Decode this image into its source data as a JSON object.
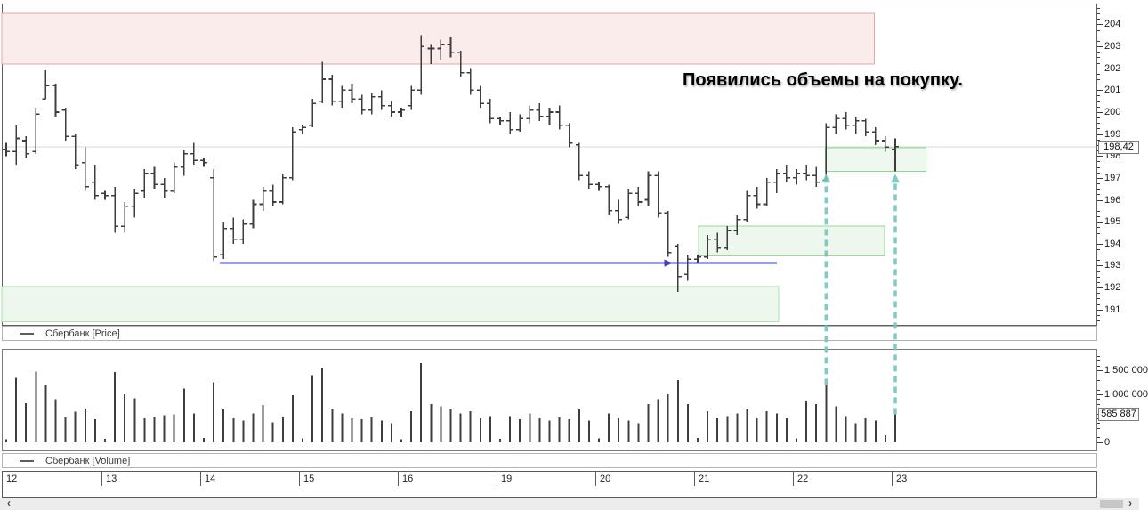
{
  "annotation": {
    "text": "Появились объемы на покупку."
  },
  "price_panel": {
    "legend_label": "Сбербанк [Price]",
    "legend_marker": "—",
    "current_price_label": "198,42"
  },
  "volume_panel": {
    "legend_label": "Сбербанк [Volume]",
    "legend_marker": "—",
    "current_volume_label": "585 887"
  },
  "scrollbar": {
    "left_arrow": "‹",
    "right_arrow": "›"
  },
  "colors": {
    "bar": "#3d3d3d",
    "grid_line": "#d8d8d8",
    "resistance_fill": "#fbecec",
    "resistance_border": "#e5a5a5",
    "support_fill": "#edf7ed",
    "support_border": "#95d995",
    "blue_line": "#4040c0",
    "arrow_teal": "#74c7bc"
  },
  "chart_data": {
    "type": "ohlc+volume",
    "title": "Сбербанк",
    "days": [
      {
        "label": "12"
      },
      {
        "label": "13"
      },
      {
        "label": "14"
      },
      {
        "label": "15"
      },
      {
        "label": "16"
      },
      {
        "label": "19"
      },
      {
        "label": "20"
      },
      {
        "label": "21"
      },
      {
        "label": "22"
      },
      {
        "label": "23"
      }
    ],
    "bars_per_day": 10,
    "price_view": [
      190.3,
      204.95
    ],
    "volume_view": [
      -170000,
      1950000
    ],
    "price_tick_labels": [
      191,
      192,
      193,
      194,
      195,
      196,
      197,
      198,
      199,
      200,
      201,
      202,
      203,
      204
    ],
    "price_minor_step": 0.25,
    "volume_tick_labels": [
      {
        "value": 0,
        "label": "0"
      },
      {
        "value": 1000000,
        "label": "1 000 000"
      },
      {
        "value": 1500000,
        "label": "1 500 000"
      }
    ],
    "volume_minor_step": 100000,
    "current_price": 198.42,
    "current_volume": 585887,
    "bars": [
      [
        198.3,
        198.6,
        198.0,
        198.2,
        60000
      ],
      [
        198.2,
        199.4,
        197.6,
        198.8,
        1350000
      ],
      [
        198.7,
        198.9,
        197.9,
        198.1,
        820000
      ],
      [
        198.2,
        200.2,
        198.1,
        199.9,
        1480000
      ],
      [
        200.6,
        201.9,
        200.6,
        201.2,
        1210000
      ],
      [
        201.2,
        201.3,
        199.8,
        200.0,
        900000
      ],
      [
        200.1,
        200.2,
        198.7,
        198.9,
        520000
      ],
      [
        198.9,
        199.0,
        197.4,
        197.6,
        640000
      ],
      [
        197.7,
        198.4,
        196.4,
        196.6,
        700000
      ],
      [
        196.8,
        197.6,
        196.0,
        196.2,
        480000
      ],
      [
        196.3,
        196.4,
        196.0,
        196.2,
        70000
      ],
      [
        196.2,
        196.6,
        194.5,
        194.8,
        1470000
      ],
      [
        194.8,
        195.9,
        194.5,
        195.7,
        1000000
      ],
      [
        195.7,
        196.5,
        195.2,
        196.3,
        920000
      ],
      [
        196.4,
        197.4,
        196.1,
        197.2,
        500000
      ],
      [
        197.2,
        197.5,
        196.5,
        196.7,
        530000
      ],
      [
        196.7,
        197.0,
        196.1,
        196.4,
        560000
      ],
      [
        196.4,
        197.7,
        196.3,
        197.5,
        580000
      ],
      [
        197.5,
        198.3,
        197.1,
        198.1,
        1120000
      ],
      [
        198.1,
        198.6,
        197.6,
        197.8,
        600000
      ],
      [
        197.8,
        197.9,
        197.5,
        197.7,
        90000
      ],
      [
        197.0,
        197.4,
        193.2,
        193.4,
        1250000
      ],
      [
        193.5,
        195.0,
        193.3,
        194.7,
        700000
      ],
      [
        194.7,
        195.2,
        194.0,
        194.2,
        500000
      ],
      [
        194.2,
        195.1,
        194.0,
        194.9,
        450000
      ],
      [
        194.9,
        196.0,
        194.7,
        195.8,
        600000
      ],
      [
        195.8,
        196.6,
        195.5,
        196.4,
        780000
      ],
      [
        196.4,
        196.7,
        195.7,
        195.9,
        420000
      ],
      [
        195.9,
        197.2,
        195.8,
        197.0,
        520000
      ],
      [
        197.0,
        199.3,
        196.9,
        199.1,
        980000
      ],
      [
        199.2,
        199.4,
        199.0,
        199.3,
        80000
      ],
      [
        199.4,
        200.6,
        199.3,
        200.4,
        1400000
      ],
      [
        200.5,
        202.3,
        200.4,
        201.5,
        1550000
      ],
      [
        201.5,
        201.7,
        200.3,
        200.5,
        700000
      ],
      [
        200.5,
        201.2,
        200.2,
        201.0,
        600000
      ],
      [
        201.0,
        201.3,
        200.4,
        200.6,
        500000
      ],
      [
        200.6,
        200.8,
        199.9,
        200.1,
        480000
      ],
      [
        200.1,
        200.9,
        199.9,
        200.7,
        520000
      ],
      [
        200.7,
        201.0,
        200.1,
        200.3,
        450000
      ],
      [
        200.3,
        200.5,
        199.8,
        200.0,
        400000
      ],
      [
        200.0,
        200.2,
        199.8,
        200.1,
        60000
      ],
      [
        200.3,
        201.2,
        200.1,
        201.0,
        650000
      ],
      [
        201.0,
        203.5,
        200.8,
        203.0,
        1650000
      ],
      [
        202.9,
        203.1,
        202.2,
        202.9,
        800000
      ],
      [
        202.9,
        203.3,
        202.4,
        203.1,
        750000
      ],
      [
        203.1,
        203.4,
        202.5,
        202.7,
        700000
      ],
      [
        202.7,
        202.8,
        201.6,
        201.8,
        600000
      ],
      [
        201.8,
        202.0,
        200.8,
        201.0,
        650000
      ],
      [
        201.0,
        201.2,
        200.2,
        200.4,
        500000
      ],
      [
        200.4,
        200.6,
        199.5,
        199.7,
        550000
      ],
      [
        199.7,
        199.8,
        199.4,
        199.6,
        70000
      ],
      [
        199.6,
        200.0,
        199.0,
        199.2,
        550000
      ],
      [
        199.2,
        199.9,
        199.1,
        199.7,
        480000
      ],
      [
        199.7,
        200.3,
        199.5,
        200.1,
        600000
      ],
      [
        200.1,
        200.4,
        199.6,
        199.8,
        500000
      ],
      [
        199.8,
        200.2,
        199.4,
        200.0,
        450000
      ],
      [
        200.0,
        200.3,
        199.2,
        199.4,
        520000
      ],
      [
        199.4,
        199.5,
        198.4,
        198.6,
        480000
      ],
      [
        198.5,
        198.6,
        196.9,
        197.1,
        700000
      ],
      [
        197.1,
        197.3,
        196.5,
        196.7,
        450000
      ],
      [
        196.7,
        196.8,
        196.4,
        196.6,
        80000
      ],
      [
        196.6,
        196.7,
        195.3,
        195.5,
        600000
      ],
      [
        195.5,
        196.0,
        194.9,
        195.1,
        500000
      ],
      [
        195.2,
        196.5,
        195.1,
        196.3,
        450000
      ],
      [
        196.3,
        196.6,
        195.7,
        195.9,
        400000
      ],
      [
        196.0,
        197.3,
        195.7,
        197.1,
        800000
      ],
      [
        197.1,
        197.3,
        195.2,
        195.4,
        900000
      ],
      [
        195.4,
        195.5,
        193.4,
        193.6,
        1000000
      ],
      [
        193.9,
        194.0,
        191.8,
        192.5,
        1300000
      ],
      [
        192.6,
        193.5,
        192.3,
        193.3,
        800000
      ],
      [
        193.3,
        193.5,
        193.1,
        193.4,
        90000
      ],
      [
        193.4,
        194.4,
        193.3,
        194.2,
        650000
      ],
      [
        194.2,
        194.5,
        193.6,
        193.8,
        500000
      ],
      [
        193.8,
        194.8,
        193.7,
        194.6,
        550000
      ],
      [
        194.6,
        195.3,
        194.4,
        195.1,
        600000
      ],
      [
        195.1,
        196.4,
        195.0,
        196.2,
        700000
      ],
      [
        196.2,
        196.6,
        195.6,
        195.8,
        500000
      ],
      [
        195.8,
        197.0,
        195.7,
        196.8,
        650000
      ],
      [
        196.8,
        197.4,
        196.3,
        197.2,
        600000
      ],
      [
        197.2,
        197.6,
        196.8,
        197.0,
        500000
      ],
      [
        197.0,
        197.4,
        196.7,
        197.2,
        80000
      ],
      [
        197.2,
        197.6,
        196.9,
        197.1,
        850000
      ],
      [
        197.1,
        197.5,
        196.6,
        196.8,
        800000
      ],
      [
        196.9,
        199.5,
        196.8,
        199.3,
        1200000
      ],
      [
        199.3,
        199.9,
        199.0,
        199.7,
        750000
      ],
      [
        199.7,
        200.0,
        199.2,
        199.4,
        550000
      ],
      [
        199.4,
        199.8,
        199.0,
        199.6,
        400000
      ],
      [
        199.6,
        199.7,
        198.9,
        199.1,
        500000
      ],
      [
        199.1,
        199.3,
        198.5,
        198.7,
        450000
      ],
      [
        198.7,
        198.9,
        198.2,
        198.4,
        150000
      ],
      [
        198.3,
        198.8,
        197.3,
        198.42,
        585887
      ]
    ],
    "zones": [
      {
        "name": "resistance-zone",
        "fill": "#fbecec",
        "border": "#e5a5a5",
        "price_from": 202.2,
        "price_to": 204.5,
        "bar_from": -0.45,
        "bar_to": 87.9
      },
      {
        "name": "support-zone-lower",
        "fill": "#edf7ed",
        "border": "#aae2aa",
        "price_from": 190.45,
        "price_to": 192.05,
        "bar_from": -0.45,
        "bar_to": 78.2
      },
      {
        "name": "support-zone-mid",
        "fill": "#edf7ed",
        "border": "#95d995",
        "price_from": 193.45,
        "price_to": 194.8,
        "bar_from": 70.1,
        "bar_to": 88.9
      },
      {
        "name": "demand-zone-right",
        "fill": "#eef8ee",
        "border": "#8cdb8c",
        "price_from": 197.3,
        "price_to": 198.38,
        "bar_from": 82.95,
        "bar_to": 93.1
      }
    ],
    "lines": [
      {
        "name": "support-level-line",
        "color": "#4040c0",
        "price": 193.12,
        "bar_from": 21.6,
        "bar_to": 78.0,
        "marker_bar": 67
      }
    ],
    "arrows": [
      {
        "name": "buy-volume-arrow-1",
        "bar": 83,
        "from_volume": 1200000,
        "to_price": 197.15,
        "color": "#74c7bc"
      },
      {
        "name": "buy-volume-arrow-2",
        "bar": 90,
        "from_volume": 585887,
        "to_price": 197.15,
        "color": "#74c7bc"
      }
    ]
  }
}
